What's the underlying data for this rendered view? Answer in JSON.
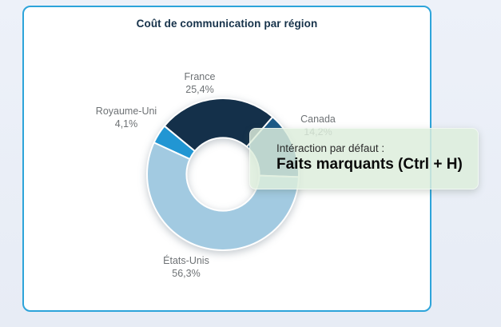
{
  "card": {
    "title": "Coût de communication par région"
  },
  "chart_data": {
    "type": "donut",
    "title": "Coût de communication par région",
    "start_angle_deg": -50.5,
    "inner_radius_ratio": 0.48,
    "legend": "none",
    "series": [
      {
        "label": "France",
        "value": 25.4,
        "display": "25,4%",
        "color": "#14304a"
      },
      {
        "label": "Canada",
        "value": 14.2,
        "display": "14,2%",
        "color": "#1d5a87"
      },
      {
        "label": "États-Unis",
        "value": 56.3,
        "display": "56,3%",
        "color": "#a2cae1"
      },
      {
        "label": "Royaume-Uni",
        "value": 4.1,
        "display": "4,1%",
        "color": "#2196d3"
      }
    ],
    "colors": {
      "label_text": "#6e7275",
      "title_text": "#16324a",
      "card_border": "#2da4da",
      "slice_gap": "#ffffff"
    }
  },
  "tooltip": {
    "line1": "Intéraction par défaut :",
    "line2": "Faits marquants (Ctrl + H)"
  }
}
